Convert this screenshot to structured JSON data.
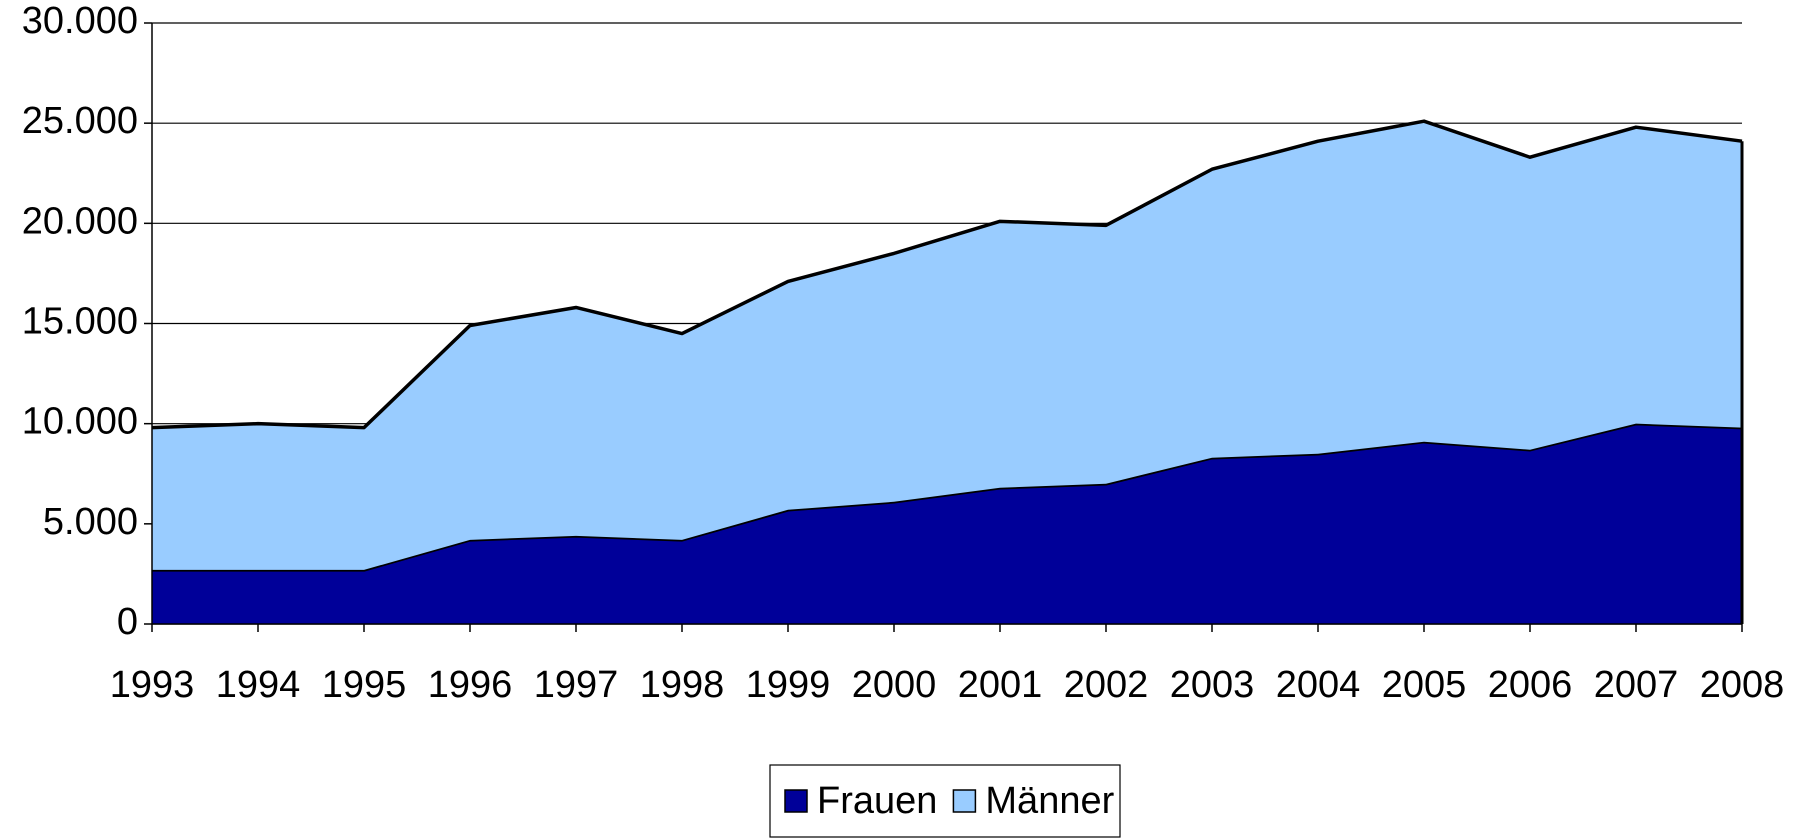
{
  "chart_data": {
    "type": "area",
    "stacked": true,
    "categories": [
      "1993",
      "1994",
      "1995",
      "1996",
      "1997",
      "1998",
      "1999",
      "2000",
      "2001",
      "2002",
      "2003",
      "2004",
      "2005",
      "2006",
      "2007",
      "2008"
    ],
    "series": [
      {
        "name": "Frauen",
        "color": "#000099",
        "values": [
          2700,
          2700,
          2700,
          4200,
          4400,
          4200,
          5700,
          6100,
          6800,
          7000,
          8300,
          8500,
          9100,
          8700,
          10000,
          9800
        ]
      },
      {
        "name": "Männer",
        "color": "#99ccff",
        "values": [
          7100,
          7300,
          7100,
          10700,
          11400,
          10300,
          11400,
          12400,
          13300,
          12900,
          14400,
          15600,
          16000,
          14600,
          14800,
          14300
        ]
      }
    ],
    "ylim": [
      0,
      30000
    ],
    "yticks": [
      0,
      {
        "value": 5000,
        "label": "5.000"
      },
      {
        "value": 10000,
        "label": "10.000"
      },
      {
        "value": 15000,
        "label": "15.000"
      },
      {
        "value": 20000,
        "label": "20.000"
      },
      {
        "value": 25000,
        "label": "25.000"
      },
      {
        "value": 30000,
        "label": "30.000"
      }
    ],
    "grid": true,
    "legend": "bottom"
  }
}
